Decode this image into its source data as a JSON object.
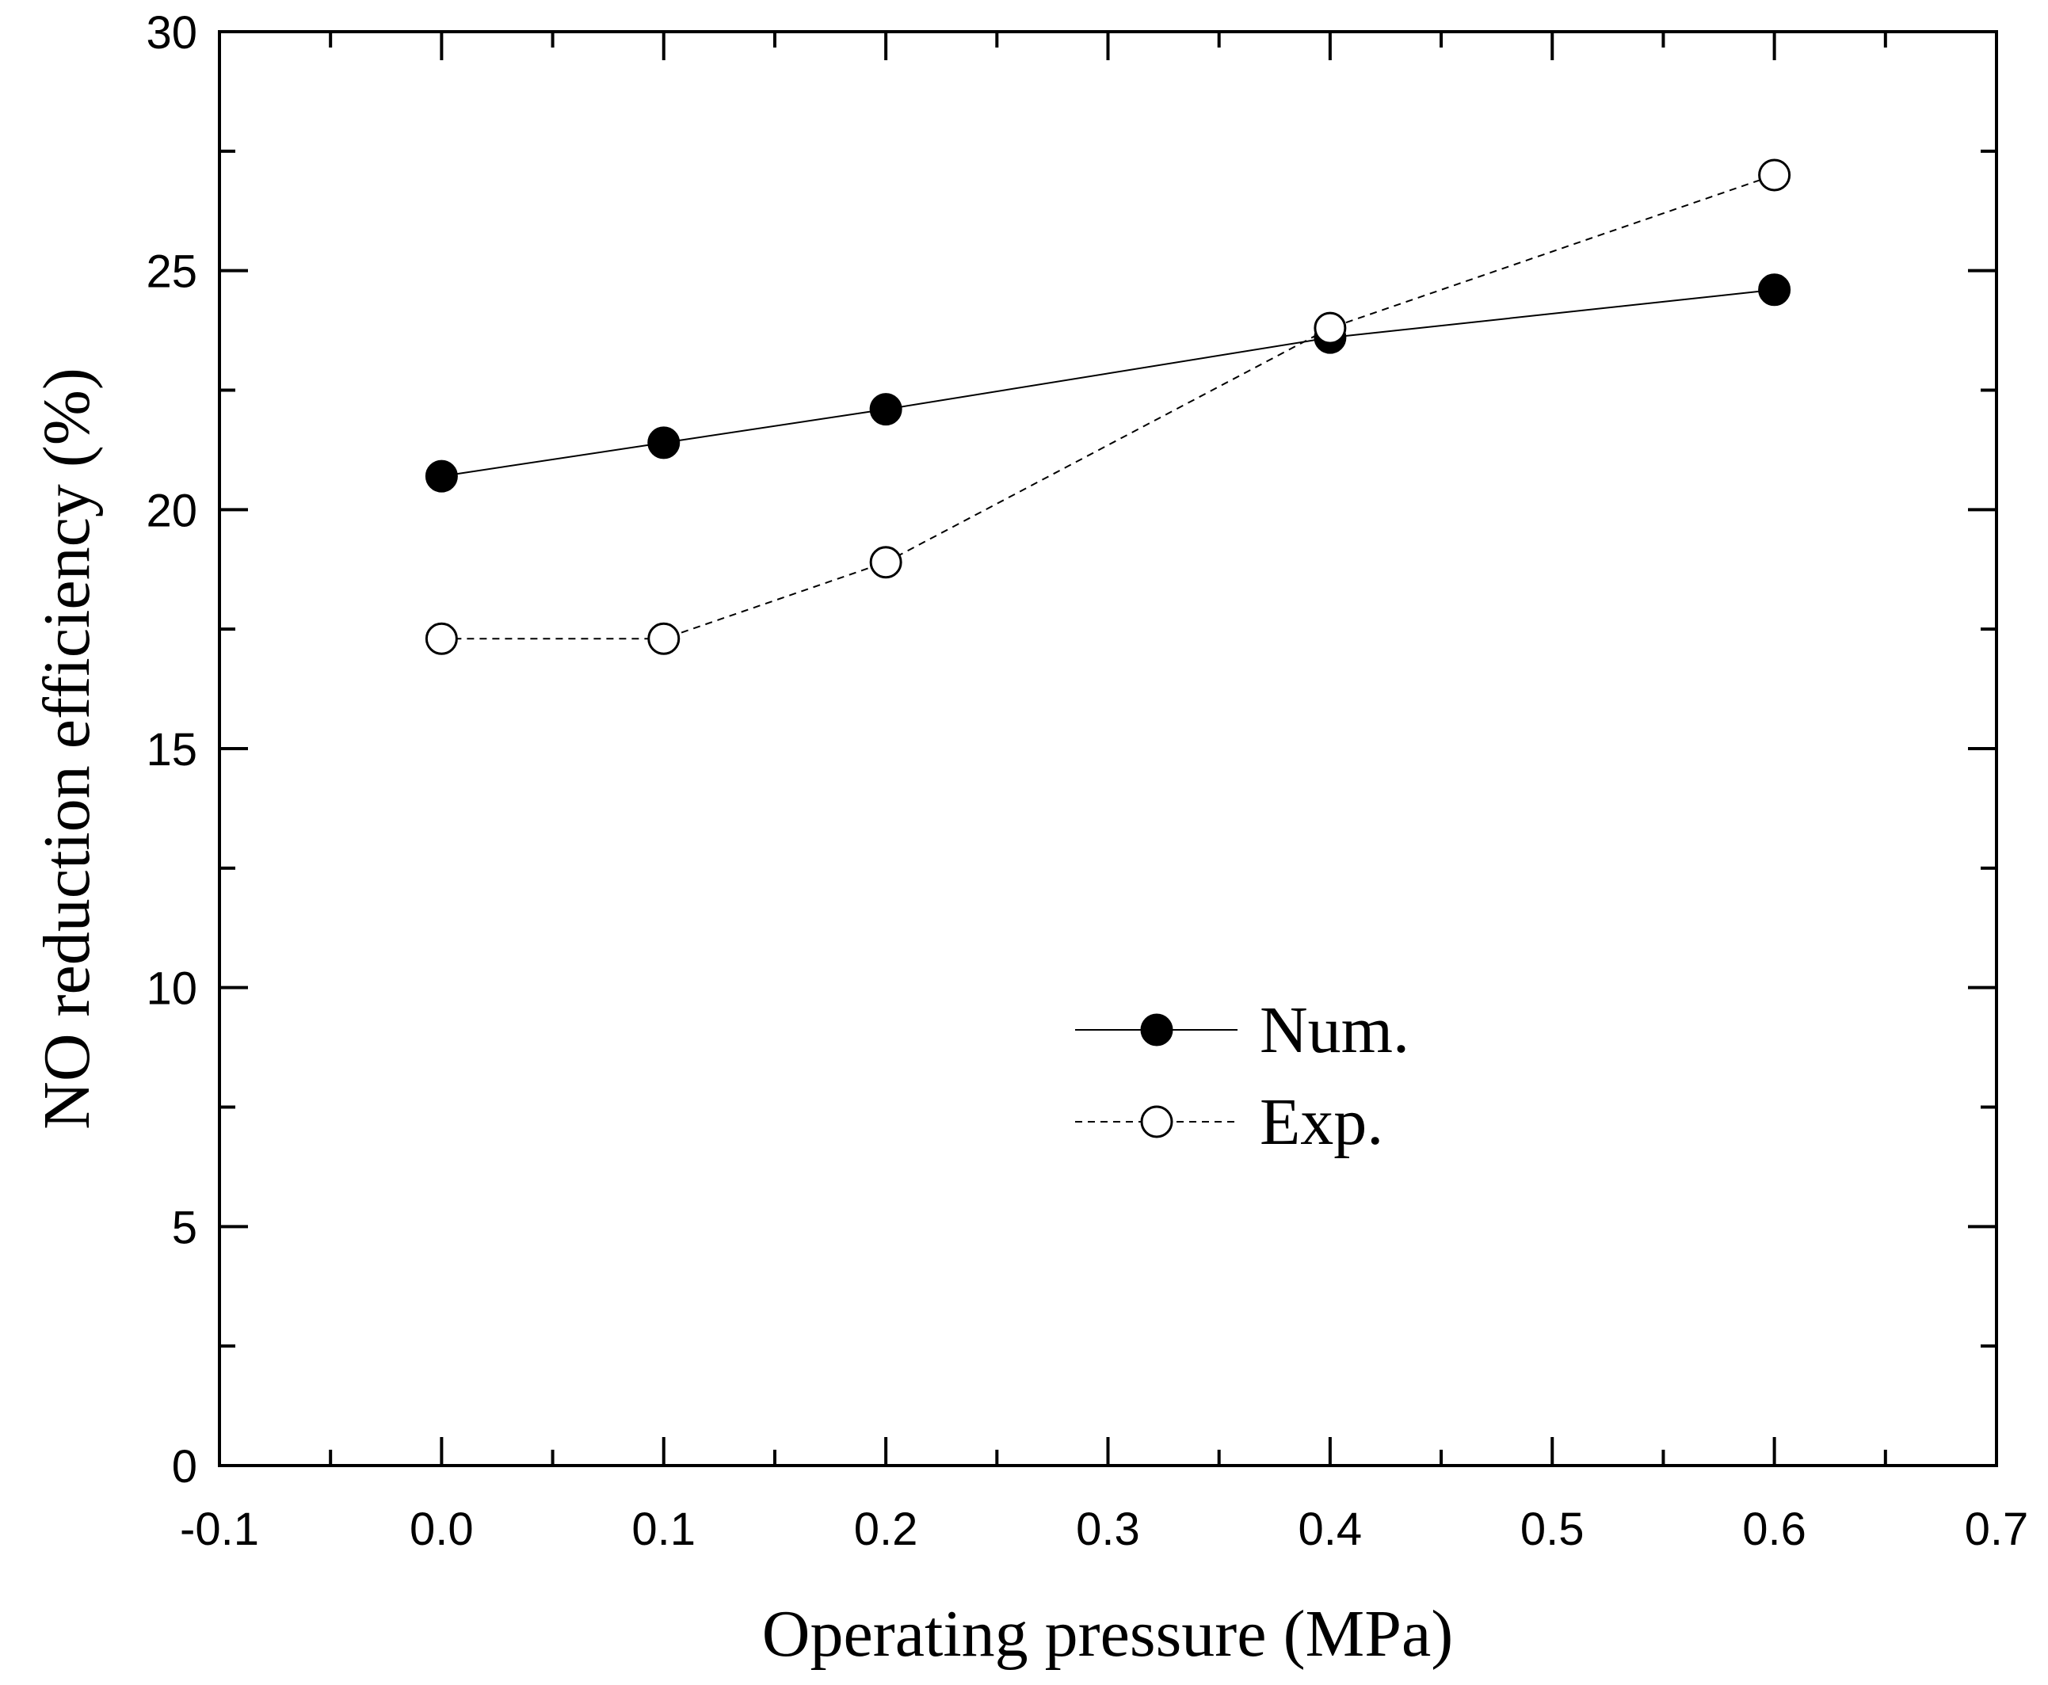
{
  "chart_data": {
    "type": "line",
    "title": "",
    "xlabel": "Operating pressure (MPa)",
    "ylabel": "NO reduction efficiency (%)",
    "xlim": [
      -0.1,
      0.7
    ],
    "ylim": [
      0,
      30
    ],
    "xticks": [
      -0.1,
      0.0,
      0.1,
      0.2,
      0.3,
      0.4,
      0.5,
      0.6,
      0.7
    ],
    "xtick_labels": [
      "-0.1",
      "0.0",
      "0.1",
      "0.2",
      "0.3",
      "0.4",
      "0.5",
      "0.6",
      "0.7"
    ],
    "yticks": [
      0,
      5,
      10,
      15,
      20,
      25,
      30
    ],
    "ytick_labels": [
      "0",
      "5",
      "10",
      "15",
      "20",
      "25",
      "30"
    ],
    "grid": false,
    "legend_position": "center",
    "series": [
      {
        "name": "Num.",
        "marker": "filled-circle",
        "line": "solid",
        "x": [
          0.0,
          0.1,
          0.2,
          0.4,
          0.6
        ],
        "y": [
          20.7,
          21.4,
          22.1,
          23.6,
          24.6
        ]
      },
      {
        "name": "Exp.",
        "marker": "open-circle",
        "line": "dashed",
        "x": [
          0.0,
          0.1,
          0.2,
          0.4,
          0.6
        ],
        "y": [
          17.3,
          17.3,
          18.9,
          23.8,
          27.0
        ]
      }
    ]
  }
}
